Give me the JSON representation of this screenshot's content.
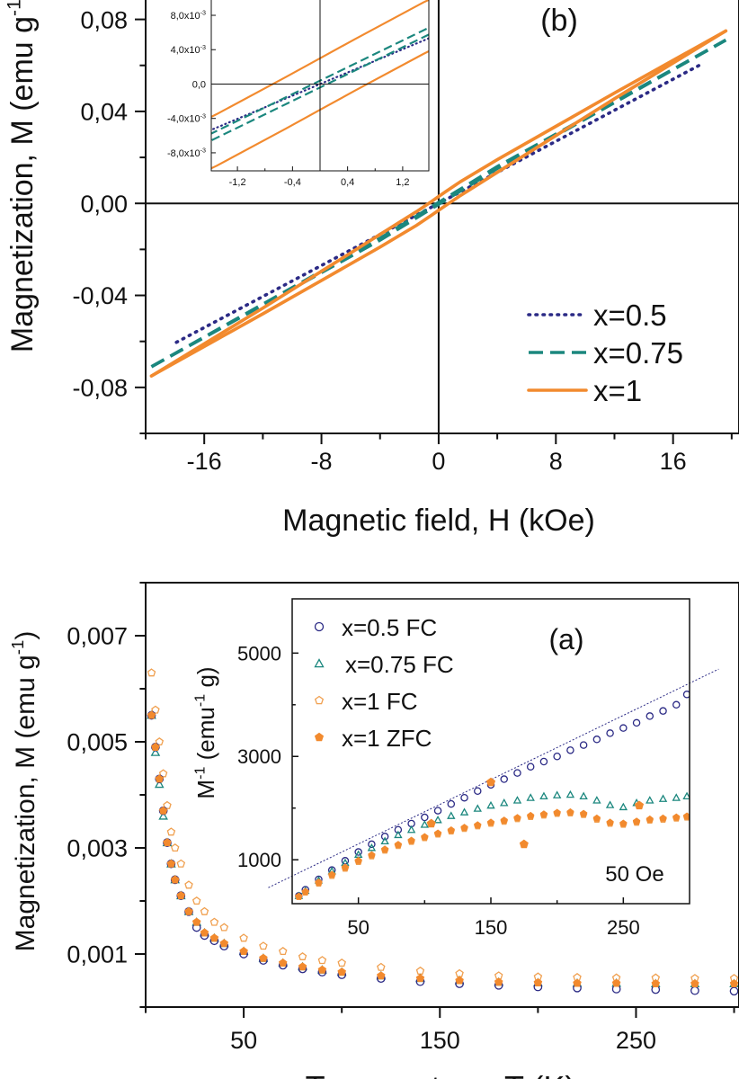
{
  "chart_data": [
    {
      "type": "line",
      "panel_label": "(b)",
      "xlabel": "Magnetic field, H (kOe)",
      "ylabel": "Magnetization, M (emu g",
      "ylabel_sup": "-1",
      "ylabel_end": ")",
      "xlim": [
        -20,
        20.5
      ],
      "ylim": [
        -0.1,
        0.09
      ],
      "x_ticks": [
        -16,
        -8,
        0,
        8,
        16
      ],
      "x_tick_labels": [
        "-16",
        "-8",
        "0",
        "8",
        "16"
      ],
      "x_minor_ticks": [
        -20,
        -12,
        -4,
        4,
        12,
        20
      ],
      "y_ticks": [
        -0.08,
        -0.04,
        0.0,
        0.04,
        0.08
      ],
      "y_tick_labels": [
        "-0,08",
        "-0,04",
        "0,00",
        "0,04",
        "0,08"
      ],
      "y_minor_ticks": [
        -0.1,
        -0.06,
        -0.02,
        0.02,
        0.06
      ],
      "zero_lines": true,
      "legend_position": "bottom-right",
      "series": [
        {
          "name": "x=0.5",
          "color": "#2b2a85",
          "style": "dotted",
          "branches": [
            {
              "H": [
                -17.9,
                17.9
              ],
              "M": [
                -0.0604,
                0.0604
              ]
            }
          ]
        },
        {
          "name": "x=0.75",
          "color": "#1b877e",
          "style": "dashed",
          "branches": [
            {
              "H": [
                -19.6,
                -4,
                0,
                4,
                19.6
              ],
              "M": [
                -0.071,
                -0.0152,
                0.0004,
                0.016,
                0.071
              ]
            },
            {
              "H": [
                -19.6,
                -4,
                0,
                4,
                19.6
              ],
              "M": [
                -0.071,
                -0.016,
                -0.0004,
                0.0152,
                0.071
              ]
            }
          ]
        },
        {
          "name": "x=1",
          "color": "#f28a2e",
          "style": "solid",
          "branches": [
            {
              "H": [
                -19.6,
                -12,
                -8,
                -4,
                -1.5,
                -0.5,
                0,
                0.5,
                1.5,
                4,
                8,
                12,
                19.6
              ],
              "M": [
                -0.075,
                -0.0455,
                -0.0295,
                -0.0135,
                -0.0035,
                0.0008,
                0.003,
                0.0052,
                0.0095,
                0.019,
                0.0335,
                0.048,
                0.075
              ]
            },
            {
              "H": [
                -19.6,
                -12,
                -8,
                -4,
                -1.5,
                -0.5,
                0,
                0.5,
                1.5,
                4,
                8,
                12,
                19.6
              ],
              "M": [
                -0.075,
                -0.048,
                -0.0335,
                -0.019,
                -0.0095,
                -0.0052,
                -0.003,
                -0.0008,
                0.0035,
                0.0135,
                0.0295,
                0.0455,
                0.075
              ]
            }
          ]
        }
      ],
      "inset": {
        "xlim": [
          -1.58,
          1.58
        ],
        "ylim": [
          -0.0101,
          0.0102
        ],
        "x_ticks": [
          -1.2,
          -0.4,
          0.4,
          1.2
        ],
        "x_tick_labels": [
          "-1,2",
          "-0,4",
          "0,4",
          "1,2"
        ],
        "x_minor_ticks": [
          -0.8,
          0,
          0.8
        ],
        "y_ticks": [
          -0.008,
          -0.004,
          0.0,
          0.004,
          0.008
        ],
        "y_tick_labels": [
          {
            "text": "-8,0x10",
            "sup": "-3"
          },
          {
            "text": "-4,0x10",
            "sup": "-3"
          },
          {
            "text": "0,0",
            "sup": ""
          },
          {
            "text": "4,0x10",
            "sup": "-3"
          },
          {
            "text": "8,0x10",
            "sup": "-3"
          }
        ],
        "zero_lines": true
      }
    },
    {
      "type": "scatter",
      "panel_label": "(a)",
      "xlabel": "Temperature, T (K)",
      "ylabel": "Magnetization,  M (emu g",
      "ylabel_sup": "-1",
      "ylabel_end": ")",
      "xlim": [
        0,
        302.5
      ],
      "ylim": [
        0.0,
        0.008
      ],
      "x_ticks": [
        50,
        150,
        250
      ],
      "x_tick_labels": [
        "50",
        "150",
        "250"
      ],
      "x_minor_ticks": [
        0,
        100,
        200,
        300
      ],
      "y_ticks": [
        0.001,
        0.003,
        0.005,
        0.007
      ],
      "y_tick_labels": [
        "0,001",
        "0,003",
        "0,005",
        "0,007"
      ],
      "y_minor_ticks": [
        0.0,
        0.002,
        0.004,
        0.006,
        0.008
      ],
      "T": [
        3,
        5,
        7,
        9,
        11,
        13,
        15,
        18,
        22,
        26,
        30,
        35,
        40,
        50,
        60,
        70,
        80,
        90,
        100,
        120,
        140,
        160,
        180,
        200,
        220,
        240,
        260,
        280,
        300
      ],
      "series": [
        {
          "name": "x=0.5 FC",
          "color": "#2b2a85",
          "marker": "circle-open",
          "M": [
            0.0055,
            0.0049,
            0.0043,
            0.0037,
            0.0031,
            0.0027,
            0.0024,
            0.0021,
            0.0018,
            0.0015,
            0.00135,
            0.00125,
            0.00115,
            0.001,
            0.00088,
            0.00079,
            0.00072,
            0.00066,
            0.00061,
            0.00054,
            0.00048,
            0.00044,
            0.00041,
            0.00038,
            0.00036,
            0.00034,
            0.00033,
            0.00031,
            0.0003
          ]
        },
        {
          "name": "x=0.75 FC",
          "color": "#1b877e",
          "marker": "triangle-open",
          "M": [
            0.0055,
            0.0048,
            0.0042,
            0.0036,
            0.0031,
            0.0027,
            0.0024,
            0.0021,
            0.0018,
            0.0016,
            0.0014,
            0.0013,
            0.0012,
            0.00105,
            0.00092,
            0.00083,
            0.00076,
            0.0007,
            0.00066,
            0.00059,
            0.00054,
            0.0005,
            0.00047,
            0.00046,
            0.00045,
            0.00045,
            0.00044,
            0.00044,
            0.00044
          ]
        },
        {
          "name": "x=1 FC",
          "color": "#f0a050",
          "marker": "pentagon-open",
          "M": [
            0.0063,
            0.0056,
            0.005,
            0.0044,
            0.0038,
            0.0033,
            0.003,
            0.0027,
            0.0023,
            0.002,
            0.0018,
            0.0016,
            0.0015,
            0.0013,
            0.00115,
            0.00105,
            0.00095,
            0.00088,
            0.00083,
            0.00075,
            0.00068,
            0.00063,
            0.00059,
            0.00057,
            0.00056,
            0.00055,
            0.00055,
            0.00054,
            0.00054
          ]
        },
        {
          "name": "x=1 ZFC",
          "color": "#f28a2e",
          "marker": "pentagon-filled",
          "M": [
            0.0055,
            0.0049,
            0.0043,
            0.0037,
            0.0031,
            0.0027,
            0.0024,
            0.0021,
            0.0018,
            0.0016,
            0.0014,
            0.0013,
            0.0012,
            0.00105,
            0.00092,
            0.00083,
            0.00076,
            0.0007,
            0.00066,
            0.00059,
            0.00054,
            0.0005,
            0.00047,
            0.00046,
            0.00045,
            0.00045,
            0.00044,
            0.00044,
            0.00044
          ]
        }
      ],
      "inset": {
        "ylabel": "M",
        "ylabel_sup": "-1",
        "ylabel_mid": " (emu",
        "ylabel_sup2": "-1",
        "ylabel_end": " g)",
        "annotation": "50 Oe",
        "legend_position": "top-left",
        "xlim": [
          0,
          300
        ],
        "ylim": [
          150,
          6050
        ],
        "x_ticks": [
          50,
          150,
          250
        ],
        "x_tick_labels": [
          "50",
          "150",
          "250"
        ],
        "x_minor_ticks": [
          100,
          200
        ],
        "y_ticks": [
          1000,
          3000,
          5000
        ],
        "y_tick_labels": [
          "1000",
          "3000",
          "5000"
        ],
        "y_minor_ticks": [
          2000,
          4000
        ],
        "T": [
          5,
          10,
          20,
          30,
          40,
          50,
          60,
          70,
          80,
          90,
          100,
          110,
          120,
          130,
          140,
          150,
          160,
          170,
          180,
          190,
          200,
          210,
          220,
          230,
          240,
          250,
          260,
          270,
          280,
          290,
          298
        ],
        "series": [
          {
            "name": "x=0.5 FC",
            "color": "#2b2a85",
            "marker": "circle-open",
            "Minv": [
              300,
              420,
              620,
              800,
              980,
              1150,
              1300,
              1450,
              1580,
              1700,
              1820,
              1950,
              2080,
              2200,
              2330,
              2450,
              2560,
              2680,
              2800,
              2900,
              3000,
              3120,
              3220,
              3330,
              3450,
              3550,
              3650,
              3780,
              3880,
              4000,
              4200
            ]
          },
          {
            "name": "x=0.75 FC",
            "color": "#1b877e",
            "marker": "triangle-open",
            "Minv": [
              300,
              400,
              600,
              780,
              940,
              1100,
              1230,
              1360,
              1480,
              1580,
              1680,
              1770,
              1850,
              1920,
              1990,
              2050,
              2100,
              2150,
              2200,
              2230,
              2250,
              2260,
              2230,
              2150,
              2060,
              2020,
              2100,
              2150,
              2180,
              2200,
              2230
            ]
          },
          {
            "name": "x=1 FC",
            "color": "#f0a050",
            "marker": "pentagon-open",
            "Minv": [
              280,
              370,
              540,
              690,
              830,
              960,
              1070,
              1180,
              1270,
              1350,
              1420,
              1490,
              1550,
              1600,
              1650,
              1700,
              1740,
              1790,
              1830,
              1860,
              1890,
              1900,
              1870,
              1780,
              1700,
              1680,
              1720,
              1760,
              1780,
              1800,
              1820
            ]
          },
          {
            "name": "x=1 ZFC",
            "color": "#f28a2e",
            "marker": "pentagon-filled",
            "Minv": [
              290,
              380,
              560,
              710,
              850,
              980,
              1090,
              1200,
              1290,
              1370,
              1440,
              1510,
              1570,
              1620,
              1670,
              1720,
              1760,
              1810,
              1850,
              1880,
              1910,
              1920,
              1890,
              1800,
              1720,
              1700,
              1740,
              1780,
              1800,
              1820,
              1840
            ],
            "outliers": {
              "T": [
                105,
                150,
                175,
                262
              ],
              "Minv": [
                1700,
                2500,
                1300,
                2050
              ]
            }
          }
        ],
        "fit_line": {
          "T": [
            -18,
            322
          ],
          "Minv": [
            460,
            4690
          ],
          "color": "#2b2a85",
          "style": "dotted"
        }
      }
    }
  ]
}
